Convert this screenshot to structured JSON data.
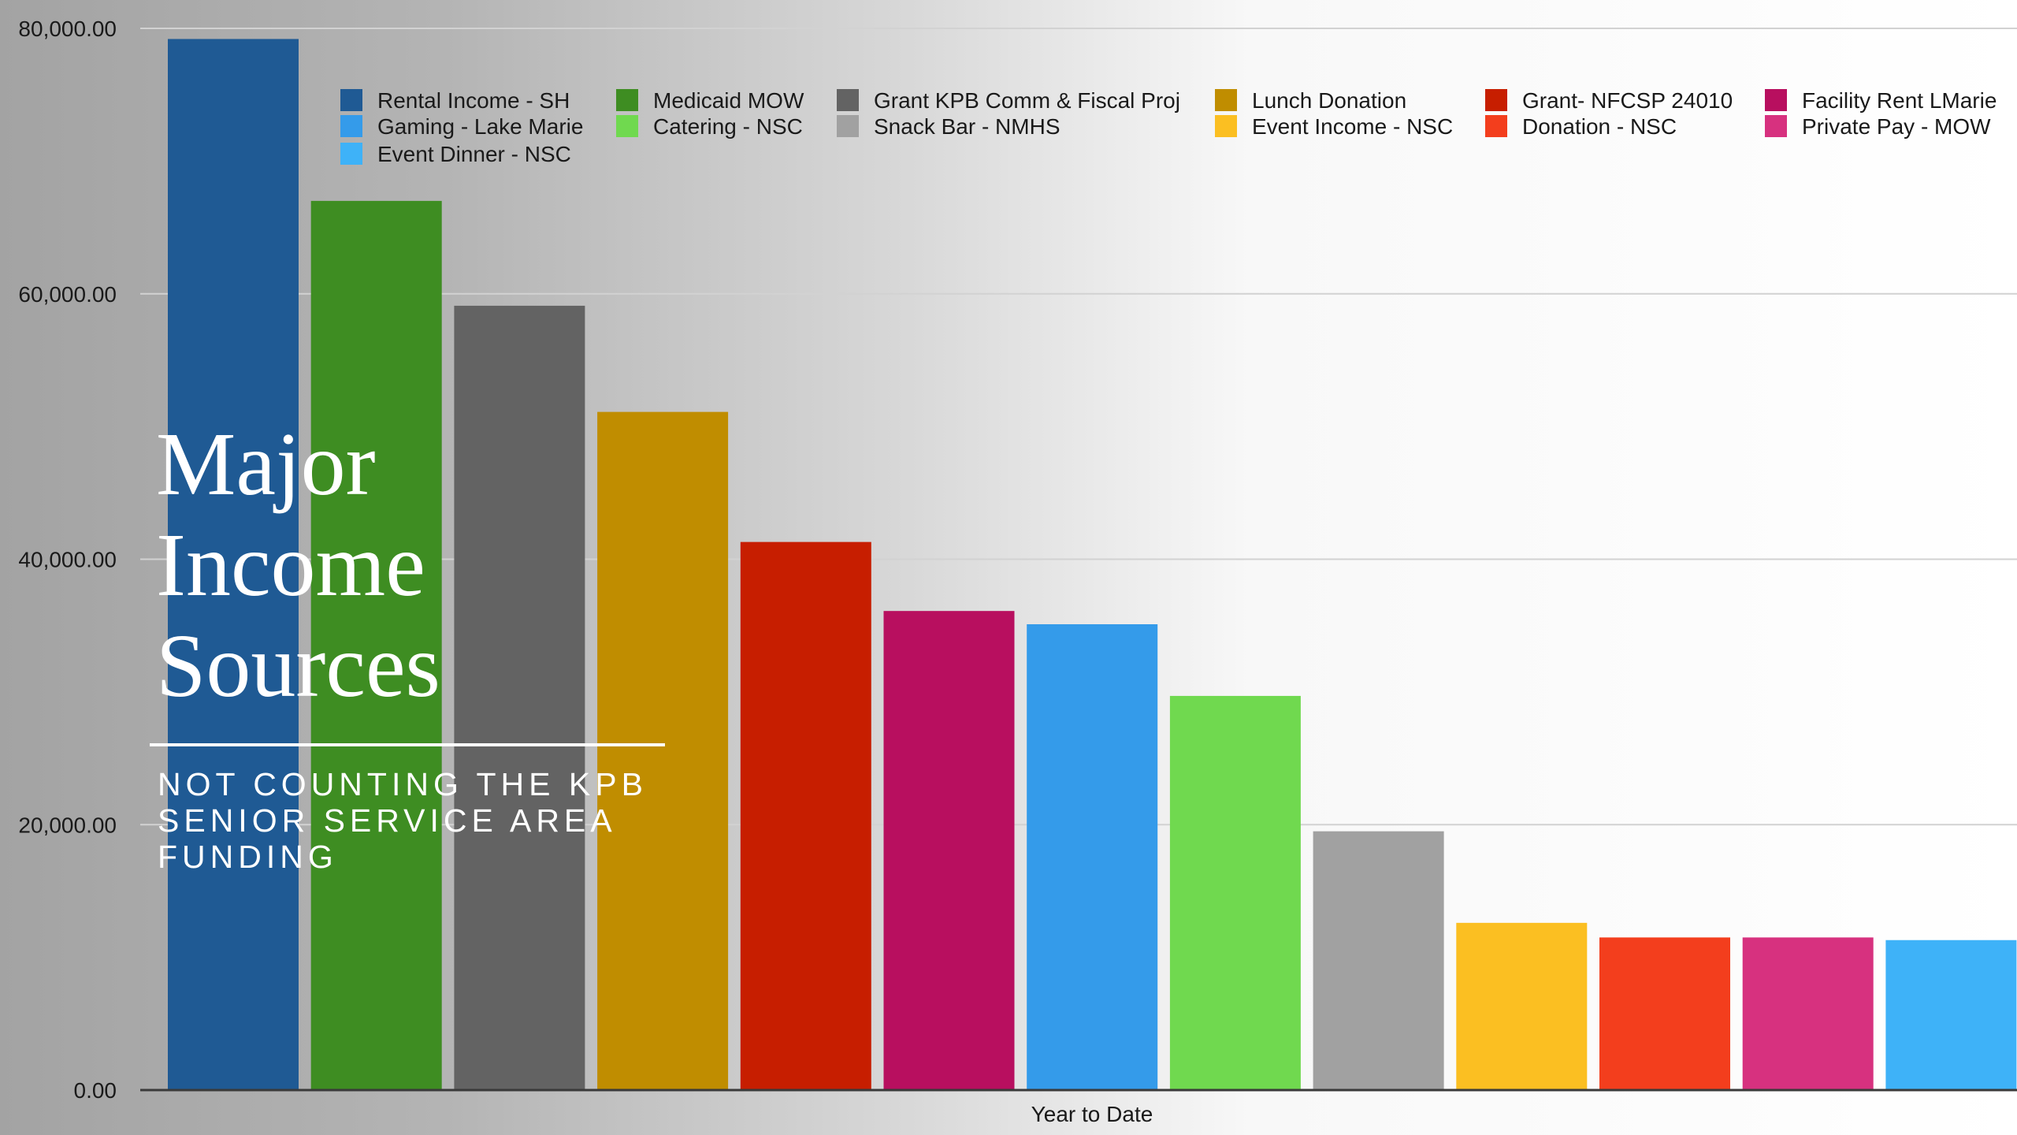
{
  "slide": {
    "title": "Major\nIncome\nSources",
    "subtitle": "NOT COUNTING THE KPB SENIOR SERVICE AREA FUNDING"
  },
  "chart_data": {
    "type": "bar",
    "title": "",
    "xlabel": "Year to Date",
    "ylabel": "",
    "ylim": [
      0,
      80000
    ],
    "yticks": [
      "0.00",
      "20,000.00",
      "40,000.00",
      "60,000.00",
      "80,000.00"
    ],
    "ytick_values": [
      0,
      20000,
      40000,
      60000,
      80000
    ],
    "grid": true,
    "legend_position": "top",
    "categories": [
      "Year to Date"
    ],
    "series": [
      {
        "name": "Rental Income - SH",
        "values": [
          79200
        ],
        "color": "#1f5a94"
      },
      {
        "name": "Medicaid MOW",
        "values": [
          67000
        ],
        "color": "#3e8d22"
      },
      {
        "name": "Grant KPB Comm & Fiscal Proj",
        "values": [
          59100
        ],
        "color": "#636363"
      },
      {
        "name": "Lunch Donation",
        "values": [
          51100
        ],
        "color": "#c08d00"
      },
      {
        "name": "Grant- NFCSP 24010",
        "values": [
          41300
        ],
        "color": "#c71e00"
      },
      {
        "name": "Facility Rent LMarie",
        "values": [
          36100
        ],
        "color": "#b80f5f"
      },
      {
        "name": "Gaming - Lake Marie",
        "values": [
          35100
        ],
        "color": "#349bea"
      },
      {
        "name": "Catering - NSC",
        "values": [
          29700
        ],
        "color": "#70d94f"
      },
      {
        "name": "Snack Bar - NMHS",
        "values": [
          19500
        ],
        "color": "#a1a1a1"
      },
      {
        "name": "Event Income - NSC",
        "values": [
          12600
        ],
        "color": "#fbbf22"
      },
      {
        "name": "Donation - NSC",
        "values": [
          11500
        ],
        "color": "#f33e1d"
      },
      {
        "name": "Private Pay - MOW",
        "values": [
          11500
        ],
        "color": "#d7317f"
      },
      {
        "name": "Event Dinner - NSC",
        "values": [
          11300
        ],
        "color": "#3eb2f8"
      }
    ],
    "legend_columns": [
      [
        "Rental Income - SH",
        "Gaming - Lake Marie",
        "Event Dinner - NSC"
      ],
      [
        "Medicaid MOW",
        "Catering - NSC"
      ],
      [
        "Grant KPB Comm & Fiscal Proj",
        "Snack Bar - NMHS"
      ],
      [
        "Lunch Donation",
        "Event Income - NSC"
      ],
      [
        "Grant- NFCSP 24010",
        "Donation - NSC"
      ],
      [
        "Facility Rent LMarie",
        "Private Pay - MOW"
      ]
    ]
  }
}
